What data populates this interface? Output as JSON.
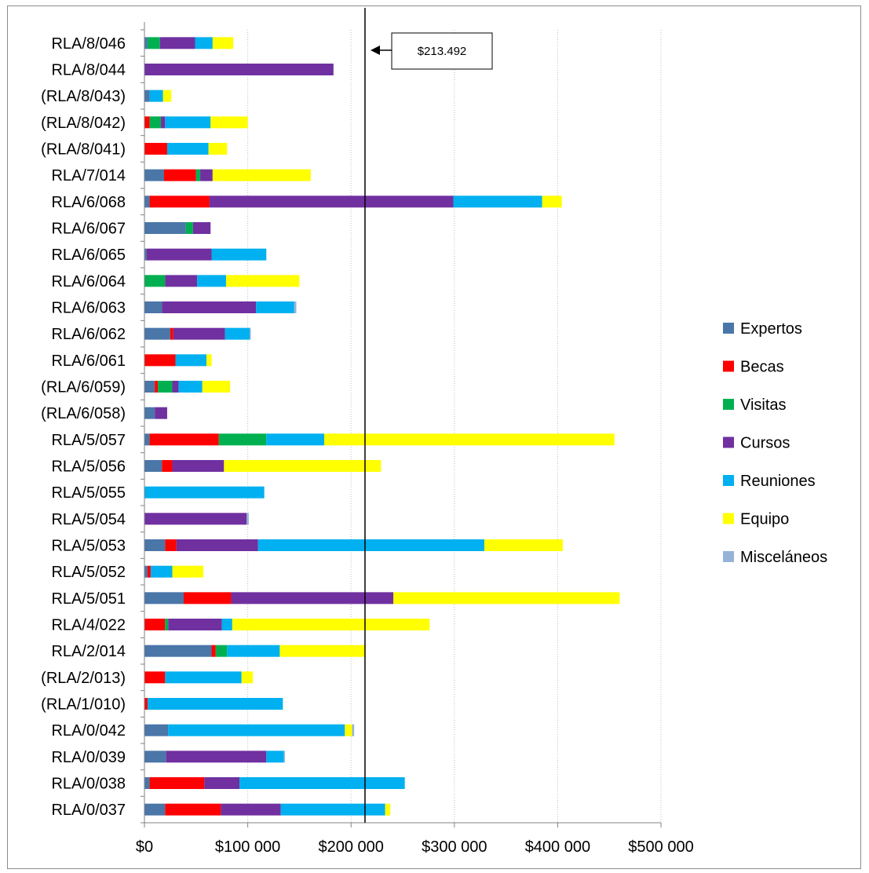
{
  "chart_data": {
    "type": "bar",
    "orientation": "horizontal",
    "stacked": true,
    "title": "",
    "xlabel": "",
    "ylabel": "",
    "xlim": [
      0,
      500000
    ],
    "x_tick_values": [
      0,
      100000,
      200000,
      300000,
      400000,
      500000
    ],
    "x_tick_labels": [
      "$0",
      "$100 000",
      "$200 000",
      "$300 000",
      "$400 000",
      "$500 000"
    ],
    "grid": "vertical dotted",
    "legend_position": "right",
    "categories": [
      "RLA/8/046",
      "RLA/8/044",
      "(RLA/8/043)",
      "(RLA/8/042)",
      "(RLA/8/041)",
      "RLA/7/014",
      "RLA/6/068",
      "RLA/6/067",
      "RLA/6/065",
      "RLA/6/064",
      "RLA/6/063",
      "RLA/6/062",
      "RLA/6/061",
      "(RLA/6/059)",
      "(RLA/6/058)",
      "RLA/5/057",
      "RLA/5/056",
      "RLA/5/055",
      "RLA/5/054",
      "RLA/5/053",
      "RLA/5/052",
      "RLA/5/051",
      "RLA/4/022",
      "RLA/2/014",
      "(RLA/2/013)",
      "(RLA/1/010)",
      "RLA/0/042",
      "RLA/0/039",
      "RLA/0/038",
      "RLA/0/037"
    ],
    "series": [
      {
        "name": "Expertos",
        "color": "#4a76a8",
        "values": [
          3000,
          0,
          5000,
          0,
          0,
          19000,
          5000,
          40000,
          2000,
          0,
          17000,
          25000,
          0,
          10000,
          10000,
          5000,
          17000,
          0,
          0,
          20000,
          3000,
          38000,
          0,
          65000,
          0,
          0,
          23000,
          21000,
          5000,
          20000
        ]
      },
      {
        "name": "Becas",
        "color": "#ff0000",
        "values": [
          0,
          0,
          0,
          5000,
          22000,
          31000,
          58000,
          0,
          0,
          0,
          0,
          3000,
          30000,
          3000,
          0,
          67000,
          10000,
          0,
          0,
          11000,
          3000,
          46000,
          20000,
          4000,
          20000,
          3000,
          0,
          0,
          53000,
          54000
        ]
      },
      {
        "name": "Visitas",
        "color": "#00b050",
        "values": [
          12000,
          0,
          0,
          11000,
          0,
          4000,
          0,
          7000,
          0,
          20000,
          0,
          0,
          0,
          14000,
          0,
          46000,
          0,
          0,
          0,
          0,
          0,
          0,
          3000,
          11000,
          0,
          0,
          0,
          0,
          0,
          0
        ]
      },
      {
        "name": "Cursos",
        "color": "#7030a0",
        "values": [
          34000,
          183000,
          0,
          4000,
          0,
          12000,
          236000,
          17000,
          63000,
          31000,
          91000,
          50000,
          0,
          6000,
          12000,
          0,
          50000,
          0,
          99000,
          79000,
          0,
          157000,
          52000,
          0,
          0,
          0,
          0,
          97000,
          34000,
          58000
        ]
      },
      {
        "name": "Reuniones",
        "color": "#00b0f0",
        "values": [
          17000,
          0,
          13000,
          44000,
          40000,
          0,
          86000,
          0,
          53000,
          28000,
          37000,
          24000,
          30000,
          23000,
          0,
          56000,
          0,
          116000,
          0,
          219000,
          21000,
          0,
          10000,
          51000,
          74000,
          131000,
          171000,
          17000,
          160000,
          101000
        ]
      },
      {
        "name": "Equipo",
        "color": "#ffff00",
        "values": [
          20000,
          0,
          8000,
          36000,
          18000,
          95000,
          19000,
          0,
          0,
          71000,
          0,
          0,
          5000,
          27000,
          0,
          281000,
          152000,
          0,
          0,
          76000,
          30000,
          219000,
          191000,
          83000,
          11000,
          0,
          7000,
          0,
          0,
          5000
        ]
      },
      {
        "name": "Misceláneos",
        "color": "#95b3d7",
        "values": [
          0,
          0,
          0,
          0,
          0,
          0,
          0,
          0,
          0,
          0,
          2000,
          1000,
          0,
          0,
          0,
          0,
          0,
          0,
          2000,
          0,
          0,
          0,
          0,
          0,
          0,
          0,
          2000,
          1000,
          0,
          0
        ]
      }
    ],
    "reference_line": {
      "value": 213492,
      "label": "$213.492"
    }
  }
}
